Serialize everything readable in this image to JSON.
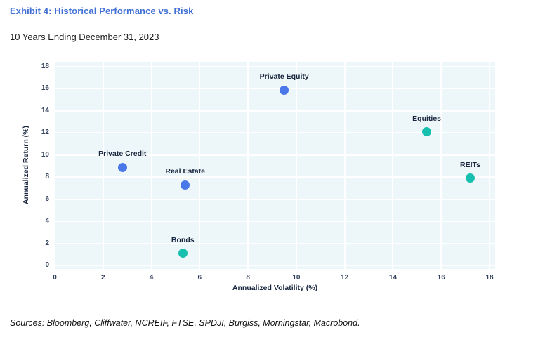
{
  "page": {
    "title": "Exhibit 4: Historical Performance vs. Risk",
    "subtitle": "10 Years Ending December 31, 2023",
    "sources": "Sources: Bloomberg, Cliffwater, NCREIF, FTSE, SPDJI, Burgiss, Morningstar, Macrobond."
  },
  "colors": {
    "title_blue": "#4170d4",
    "point_blue": "#4a78e8",
    "point_teal": "#17bfae",
    "plot_background": "#edf6f8",
    "gridline": "#ffffff",
    "label_text": "#16243d"
  },
  "chart_data": {
    "type": "scatter",
    "title": "Exhibit 4: Historical Performance vs. Risk",
    "subtitle": "10 Years Ending December 31, 2023",
    "xlabel": "Annualized Volatility (%)",
    "ylabel": "Annualized Return (%)",
    "xlim": [
      0,
      18
    ],
    "ylim": [
      0,
      18
    ],
    "xticks": [
      0,
      2,
      4,
      6,
      8,
      10,
      12,
      14,
      16,
      18
    ],
    "yticks": [
      0,
      2,
      4,
      6,
      8,
      10,
      12,
      14,
      16,
      18
    ],
    "grid": true,
    "legend": "none",
    "points": [
      {
        "label": "Private Credit",
        "x": 2.8,
        "y": 8.9,
        "color": "#4a78e8"
      },
      {
        "label": "Real Estate",
        "x": 5.4,
        "y": 7.3,
        "color": "#4a78e8"
      },
      {
        "label": "Private Equity",
        "x": 9.5,
        "y": 15.9,
        "color": "#4a78e8"
      },
      {
        "label": "Bonds",
        "x": 5.3,
        "y": 1.1,
        "color": "#17bfae"
      },
      {
        "label": "Equities",
        "x": 15.4,
        "y": 12.1,
        "color": "#17bfae"
      },
      {
        "label": "REITs",
        "x": 17.2,
        "y": 7.9,
        "color": "#17bfae"
      }
    ]
  }
}
